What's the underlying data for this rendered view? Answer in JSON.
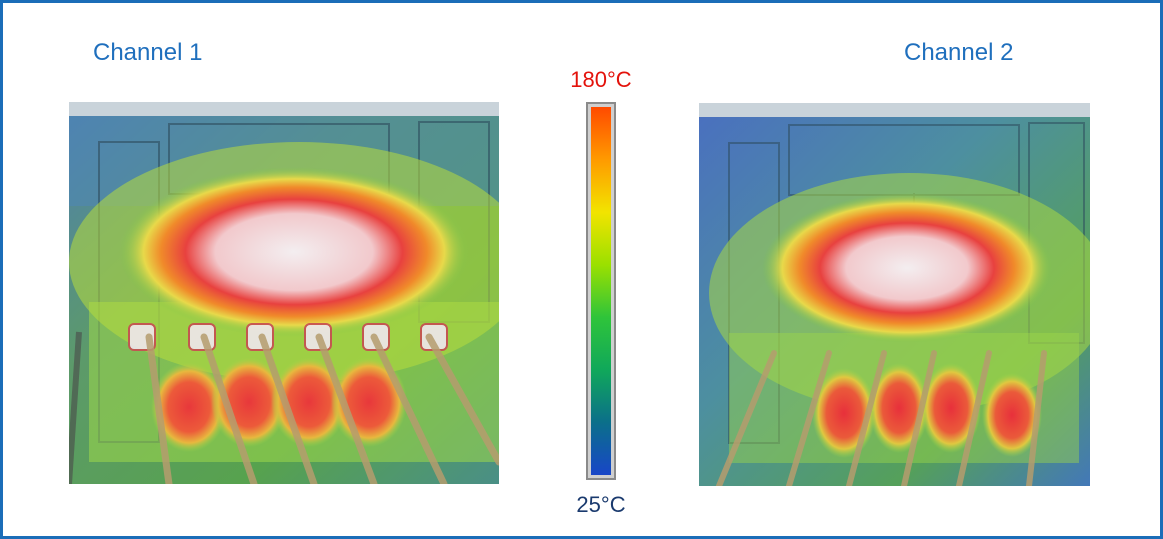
{
  "channels": [
    {
      "title": "Channel 1"
    },
    {
      "title": "Channel 2"
    }
  ],
  "scale": {
    "max_label": "180°C",
    "min_label": "25°C",
    "max_color": "#e3120b",
    "min_color": "#1a3a6e",
    "gradient_stops": [
      "#ff4a00",
      "#ff9a00",
      "#f2e400",
      "#9be000",
      "#2fc43a",
      "#10a85a",
      "#0b6f8a",
      "#1846c8"
    ]
  },
  "icons": {
    "thermal_1": "thermal-image-icon",
    "thermal_2": "thermal-image-icon"
  }
}
